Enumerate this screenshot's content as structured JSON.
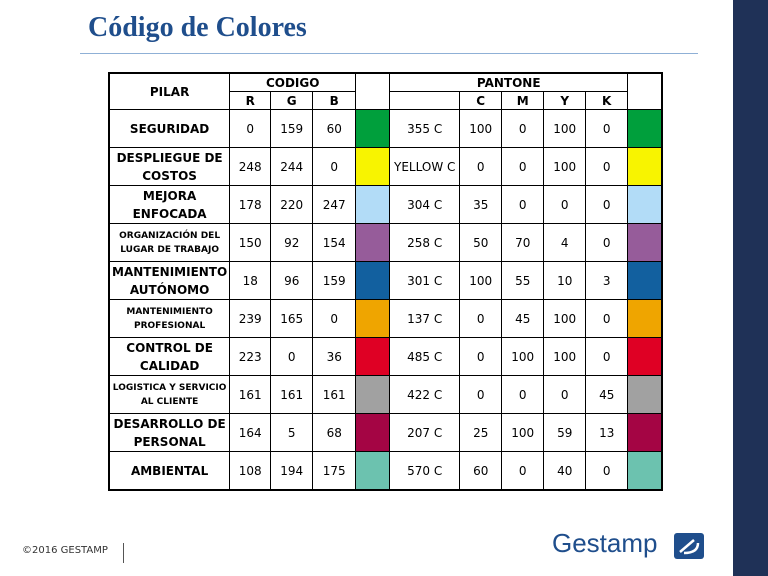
{
  "title": "Código de Colores",
  "table": {
    "header": {
      "pilar": "PILAR",
      "codigo": "CODIGO",
      "pantone": "PANTONE",
      "rgb": [
        "R",
        "G",
        "B"
      ],
      "cmyk": [
        "C",
        "M",
        "Y",
        "K"
      ]
    },
    "rows": [
      {
        "pilar": "SEGURIDAD",
        "rgb": [
          0,
          159,
          60
        ],
        "pantone": "355 C",
        "cmyk": [
          100,
          0,
          100,
          0
        ]
      },
      {
        "pilar": "DESPLIEGUE DE COSTOS",
        "rgb": [
          248,
          244,
          0
        ],
        "pantone": "YELLOW C",
        "cmyk": [
          0,
          0,
          100,
          0
        ]
      },
      {
        "pilar": "MEJORA ENFOCADA",
        "rgb": [
          178,
          220,
          247
        ],
        "pantone": "304 C",
        "cmyk": [
          35,
          0,
          0,
          0
        ]
      },
      {
        "pilar": "ORGANIZACIÓN DEL LUGAR DE TRABAJO",
        "rgb": [
          150,
          92,
          154
        ],
        "pantone": "258 C",
        "cmyk": [
          50,
          70,
          4,
          0
        ]
      },
      {
        "pilar": "MANTENIMIENTO AUTÓNOMO",
        "rgb": [
          18,
          96,
          159
        ],
        "pantone": "301 C",
        "cmyk": [
          100,
          55,
          10,
          3
        ]
      },
      {
        "pilar": "MANTENIMIENTO PROFESIONAL",
        "rgb": [
          239,
          165,
          0
        ],
        "pantone": "137 C",
        "cmyk": [
          0,
          45,
          100,
          0
        ]
      },
      {
        "pilar": "CONTROL DE CALIDAD",
        "rgb": [
          223,
          0,
          36
        ],
        "pantone": "485 C",
        "cmyk": [
          0,
          100,
          100,
          0
        ]
      },
      {
        "pilar": "LOGISTICA Y SERVICIO AL CLIENTE",
        "rgb": [
          161,
          161,
          161
        ],
        "pantone": "422 C",
        "cmyk": [
          0,
          0,
          0,
          45
        ]
      },
      {
        "pilar": "DESARROLLO DE PERSONAL",
        "rgb": [
          164,
          5,
          68
        ],
        "pantone": "207 C",
        "cmyk": [
          25,
          100,
          59,
          13
        ]
      },
      {
        "pilar": "AMBIENTAL",
        "rgb": [
          108,
          194,
          175
        ],
        "pantone": "570 C",
        "cmyk": [
          60,
          0,
          40,
          0
        ]
      }
    ]
  },
  "footer": {
    "copyright": "©2016 GESTAMP",
    "logo": "Gestamp"
  }
}
